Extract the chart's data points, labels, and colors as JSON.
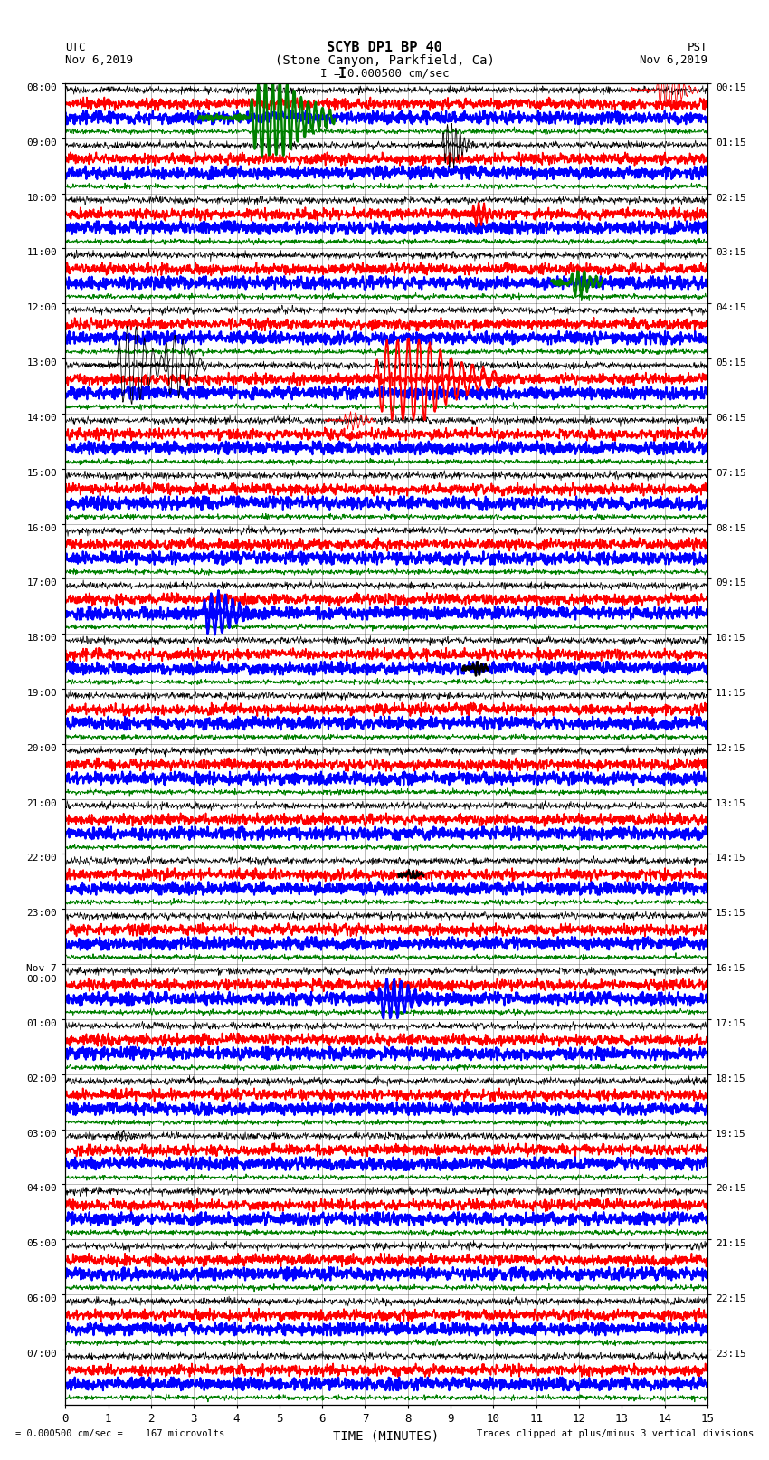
{
  "title_line1": "SCYB DP1 BP 40",
  "title_line2": "(Stone Canyon, Parkfield, Ca)",
  "scale_text": "I = 0.000500 cm/sec",
  "utc_label": "UTC",
  "utc_date": "Nov 6,2019",
  "pst_label": "PST",
  "pst_date": "Nov 6,2019",
  "xlabel": "TIME (MINUTES)",
  "footer_left": "= 0.000500 cm/sec =    167 microvolts",
  "footer_right": "Traces clipped at plus/minus 3 vertical divisions",
  "num_rows": 24,
  "traces_per_row": 4,
  "minutes_per_row": 15,
  "colors": [
    "black",
    "red",
    "blue",
    "green"
  ],
  "trace_linewidths": [
    0.5,
    1.2,
    1.5,
    0.7
  ],
  "noise_amplitudes": [
    0.12,
    0.18,
    0.22,
    0.08
  ],
  "bg_color": "white",
  "left_labels": [
    "08:00",
    "09:00",
    "10:00",
    "11:00",
    "12:00",
    "13:00",
    "14:00",
    "15:00",
    "16:00",
    "17:00",
    "18:00",
    "19:00",
    "20:00",
    "21:00",
    "22:00",
    "23:00",
    "Nov 7\n00:00",
    "01:00",
    "02:00",
    "03:00",
    "04:00",
    "05:00",
    "06:00",
    "07:00"
  ],
  "right_labels": [
    "00:15",
    "01:15",
    "02:15",
    "03:15",
    "04:15",
    "05:15",
    "06:15",
    "07:15",
    "08:15",
    "09:15",
    "10:15",
    "11:15",
    "12:15",
    "13:15",
    "14:15",
    "15:15",
    "16:15",
    "17:15",
    "18:15",
    "19:15",
    "20:15",
    "21:15",
    "22:15",
    "23:15"
  ],
  "events": [
    {
      "row": 0,
      "trace": 2,
      "minute": 4.3,
      "color": "green",
      "amplitude": 2.8,
      "duration": 0.8,
      "freq": 6.0
    },
    {
      "row": 0,
      "trace": 0,
      "minute": 13.8,
      "color": "red",
      "amplitude": 1.2,
      "duration": 0.4,
      "freq": 8.0
    },
    {
      "row": 1,
      "trace": 0,
      "minute": 8.8,
      "color": "black",
      "amplitude": 1.5,
      "duration": 0.3,
      "freq": 10.0
    },
    {
      "row": 2,
      "trace": 1,
      "minute": 9.5,
      "color": "red",
      "amplitude": 0.8,
      "duration": 0.25,
      "freq": 8.0
    },
    {
      "row": 3,
      "trace": 2,
      "minute": 11.8,
      "color": "green",
      "amplitude": 0.9,
      "duration": 0.3,
      "freq": 7.0
    },
    {
      "row": 5,
      "trace": 0,
      "minute": 1.2,
      "color": "black",
      "amplitude": 2.8,
      "duration": 0.5,
      "freq": 5.0
    },
    {
      "row": 5,
      "trace": 0,
      "minute": 2.3,
      "color": "black",
      "amplitude": 2.2,
      "duration": 0.4,
      "freq": 5.0
    },
    {
      "row": 5,
      "trace": 1,
      "minute": 7.2,
      "color": "red",
      "amplitude": 3.0,
      "duration": 1.2,
      "freq": 4.0
    },
    {
      "row": 6,
      "trace": 0,
      "minute": 6.5,
      "color": "red",
      "amplitude": 0.6,
      "duration": 0.3,
      "freq": 8.0
    },
    {
      "row": 9,
      "trace": 2,
      "minute": 3.2,
      "color": "blue",
      "amplitude": 1.5,
      "duration": 0.5,
      "freq": 6.0
    },
    {
      "row": 10,
      "trace": 2,
      "minute": 9.5,
      "color": "black",
      "amplitude": 0.4,
      "duration": 0.15,
      "freq": 10.0
    },
    {
      "row": 14,
      "trace": 1,
      "minute": 8.0,
      "color": "black",
      "amplitude": 0.3,
      "duration": 0.15,
      "freq": 10.0
    },
    {
      "row": 16,
      "trace": 2,
      "minute": 7.3,
      "color": "blue",
      "amplitude": 1.4,
      "duration": 0.5,
      "freq": 6.0
    },
    {
      "row": 19,
      "trace": 0,
      "minute": 1.2,
      "color": "black",
      "amplitude": 0.4,
      "duration": 0.2,
      "freq": 8.0
    }
  ]
}
